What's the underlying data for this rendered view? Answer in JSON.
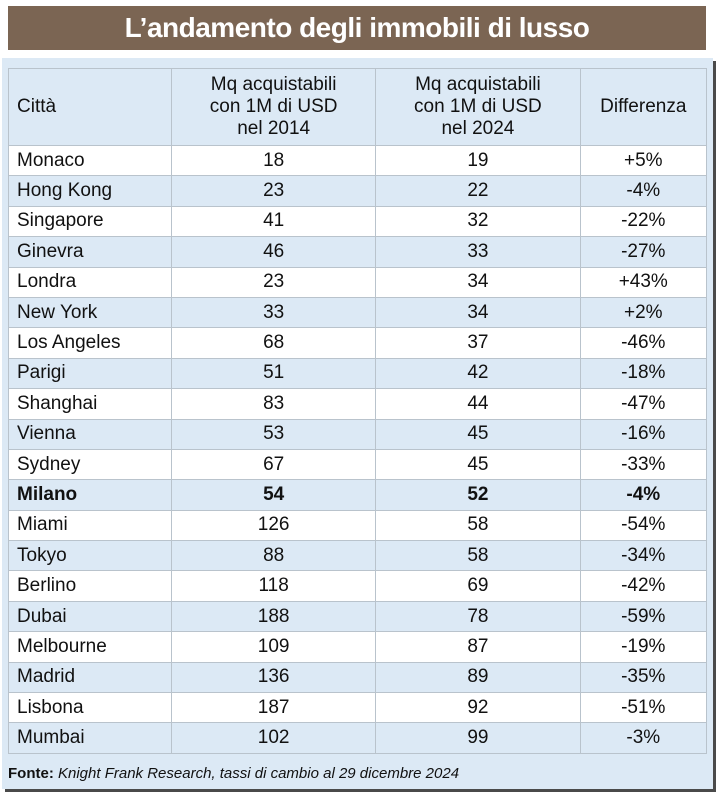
{
  "header": {
    "title": "L’andamento degli immobili di lusso"
  },
  "table": {
    "columns": [
      "Città",
      "Mq acquistabili con 1M di USD nel 2014",
      "Mq acquistabili con 1M di USD nel 2024",
      "Differenza"
    ],
    "rows": [
      [
        "Monaco",
        18,
        19,
        "+5%"
      ],
      [
        "Hong Kong",
        23,
        22,
        "-4%"
      ],
      [
        "Singapore",
        41,
        32,
        "-22%"
      ],
      [
        "Ginevra",
        46,
        33,
        "-27%"
      ],
      [
        "Londra",
        23,
        34,
        "+43%"
      ],
      [
        "New York",
        33,
        34,
        "+2%"
      ],
      [
        "Los Angeles",
        68,
        37,
        "-46%"
      ],
      [
        "Parigi",
        51,
        42,
        "-18%"
      ],
      [
        "Shanghai",
        83,
        44,
        "-47%"
      ],
      [
        "Vienna",
        53,
        45,
        "-16%"
      ],
      [
        "Sydney",
        67,
        45,
        "-33%"
      ],
      [
        "Milano",
        54,
        52,
        "-4%"
      ],
      [
        "Miami",
        126,
        58,
        "-54%"
      ],
      [
        "Tokyo",
        88,
        58,
        "-34%"
      ],
      [
        "Berlino",
        118,
        69,
        "-42%"
      ],
      [
        "Dubai",
        188,
        78,
        "-59%"
      ],
      [
        "Melbourne",
        109,
        87,
        "-19%"
      ],
      [
        "Madrid",
        136,
        89,
        "-35%"
      ],
      [
        "Lisbona",
        187,
        92,
        "-51%"
      ],
      [
        "Mumbai",
        102,
        99,
        "-3%"
      ]
    ],
    "bold_rows": [
      11
    ]
  },
  "footer": {
    "label": "Fonte:",
    "source": "Knight Frank Research, tassi di cambio al 29 dicembre 2024"
  }
}
